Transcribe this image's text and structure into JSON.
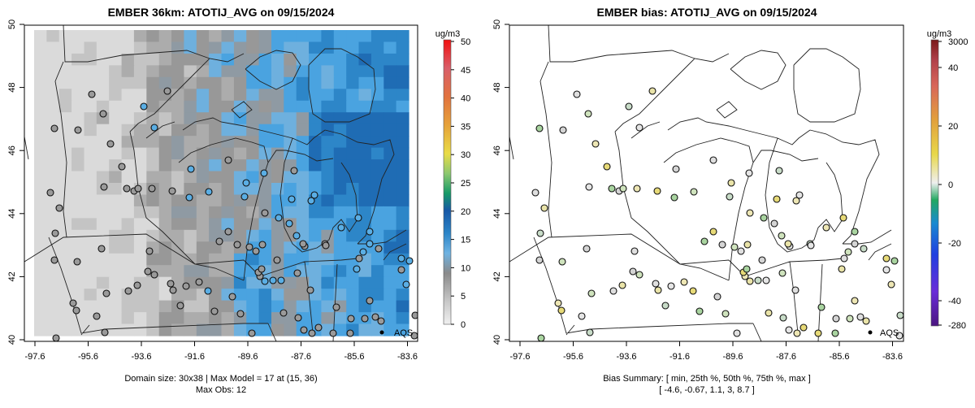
{
  "left_panel": {
    "title": "EMBER 36km: ATOTIJ_AVG on 09/15/2024",
    "units": "ug/m3",
    "x_ticks": [
      "-97.6",
      "-95.6",
      "-93.6",
      "-91.6",
      "-89.6",
      "-87.6",
      "-85.6",
      "-83.6"
    ],
    "y_ticks": [
      "40",
      "42",
      "44",
      "46",
      "48",
      "50"
    ],
    "colorbar_ticks": [
      "0",
      "5",
      "10",
      "15",
      "20",
      "25",
      "30",
      "35",
      "40",
      "45",
      "50"
    ],
    "network_label": "AQS",
    "footer_line1": "Domain size: 30x38 | Max Model = 17 at (15, 36)",
    "footer_line2": "Max Obs: 12"
  },
  "right_panel": {
    "title": "EMBER bias: ATOTIJ_AVG on 09/15/2024",
    "units": "ug/m3",
    "x_ticks": [
      "-97.6",
      "-95.6",
      "-93.6",
      "-91.6",
      "-89.6",
      "-87.6",
      "-85.6",
      "-83.6"
    ],
    "y_ticks": [
      "40",
      "42",
      "44",
      "46",
      "48",
      "50"
    ],
    "colorbar_ticks": [
      "3000",
      "40",
      "20",
      "0",
      "-20",
      "-40",
      "-280"
    ],
    "network_label": "AQS",
    "footer_line1": "Bias Summary: [ min, 25th %, 50th %, 75th %, max ]",
    "footer_line2": "[ -4.6,   -0.67,   1.1,   3,   8.7 ]"
  },
  "colors": {
    "concentration_scale": [
      "#d9d9d9",
      "#a8a8a8",
      "#8a8a8a",
      "#56a8dc",
      "#2f88c8",
      "#1f5fae",
      "#1a9a63",
      "#7cc26b",
      "#e6d44a",
      "#e29a3c",
      "#d8665a",
      "#f01010"
    ],
    "bias_scale": [
      "#5a1a9a",
      "#2a2ae0",
      "#1a6ae0",
      "#1aa07a",
      "#7cc26b",
      "#ececec",
      "#e6d44a",
      "#e2a03c",
      "#c84a50",
      "#7a1a1a"
    ]
  }
}
